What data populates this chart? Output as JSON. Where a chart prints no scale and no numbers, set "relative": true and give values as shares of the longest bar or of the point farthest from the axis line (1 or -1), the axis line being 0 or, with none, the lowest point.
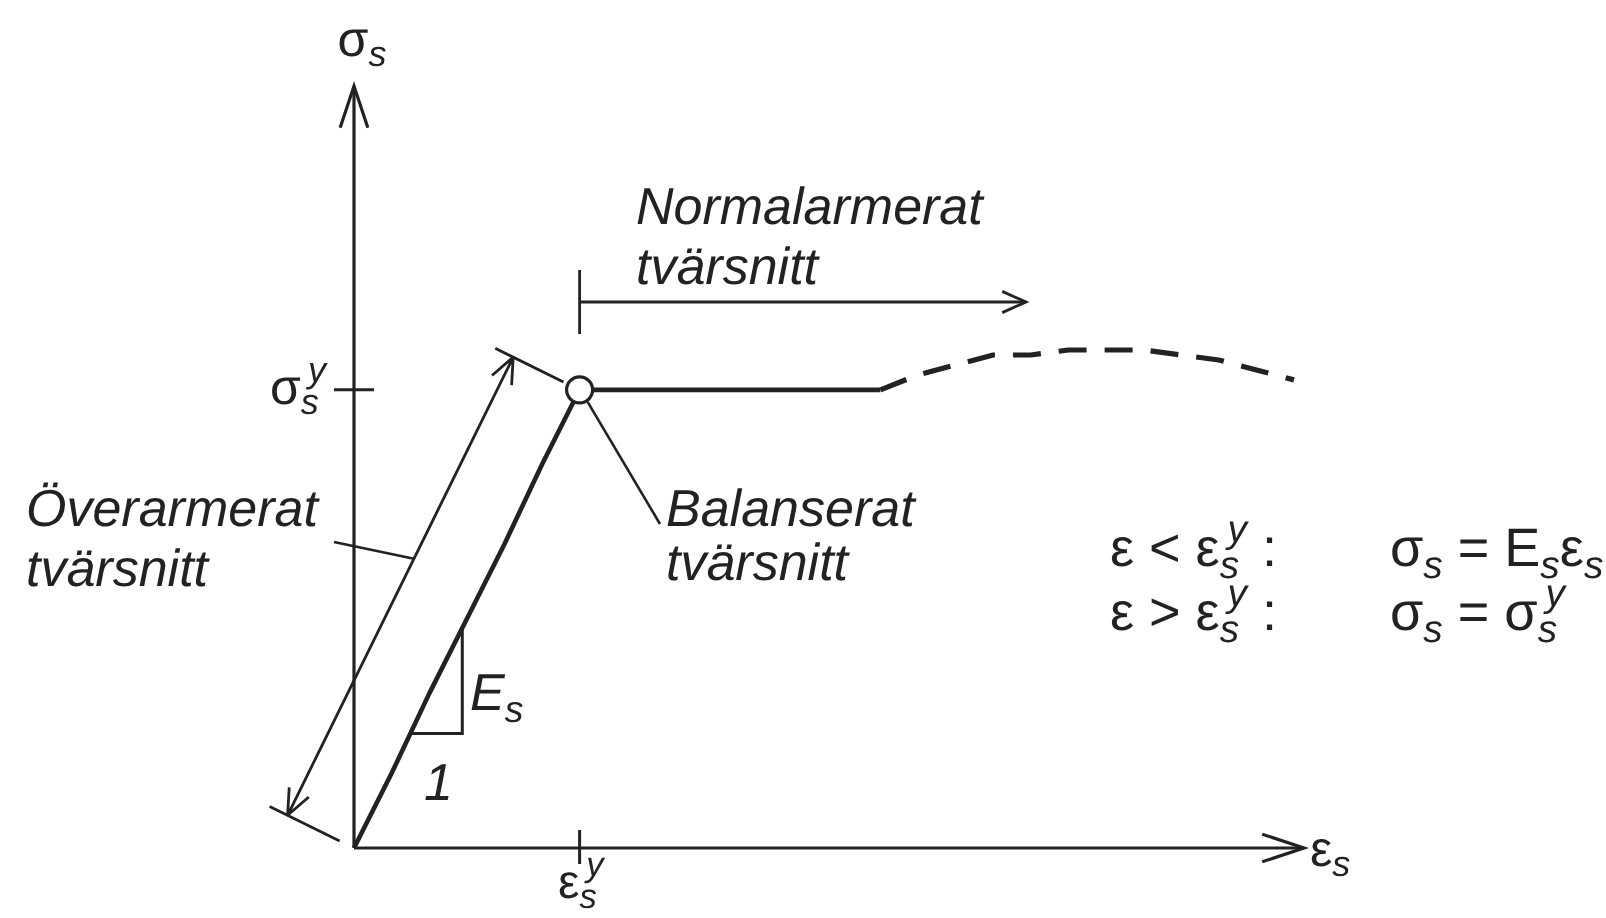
{
  "chart_data": {
    "type": "line",
    "relative": true,
    "xlabel": "ε$_{s}$",
    "categories": [
      null,
      null,
      null,
      null,
      null,
      null,
      null,
      null,
      null,
      null,
      null,
      null,
      null,
      null,
      null,
      null,
      null,
      null,
      null,
      null,
      null,
      null,
      null,
      null,
      null,
      null
    ],
    "line_style": "solid",
    "series": [
      {
        "color": "#222222",
        "values": [
          0,
          0.15,
          0.31,
          0.46,
          0.61,
          0.77,
          0.92,
          0.92,
          0.92,
          0.92,
          0.92,
          0.92,
          0.92,
          0.92,
          0.92,
          null,
          null,
          null,
          null,
          null,
          null,
          null,
          null,
          null,
          null,
          null
        ]
      },
      {
        "color": "#222222",
        "line_style": "dashed",
        "values": [
          null,
          null,
          null,
          null,
          null,
          null,
          null,
          null,
          null,
          null,
          null,
          null,
          null,
          null,
          0.92,
          0.95,
          0.97,
          0.99,
          0.99,
          1,
          1,
          1,
          0.99,
          0.98,
          0.96,
          0.94
        ]
      }
    ],
    "annotations": [
      "σ$_{s}$",
      "σ$_{s}$$^{y}$",
      "ε$_{s}$$^{y}$",
      "Normalarmerat tvärsnitt",
      "Överarmerat tvärsnitt",
      "Balanserat tvärsnitt",
      "E$_{s}$",
      "1",
      "ε < ε$_{s}$$^{y}$ :",
      "σ$_{s}$ = E$_{s}$ε$_{s}$",
      "ε > ε$_{s}$$^{y}$ :",
      "σ$_{s}$ = σ$_{s}$$^{y}$"
    ]
  }
}
